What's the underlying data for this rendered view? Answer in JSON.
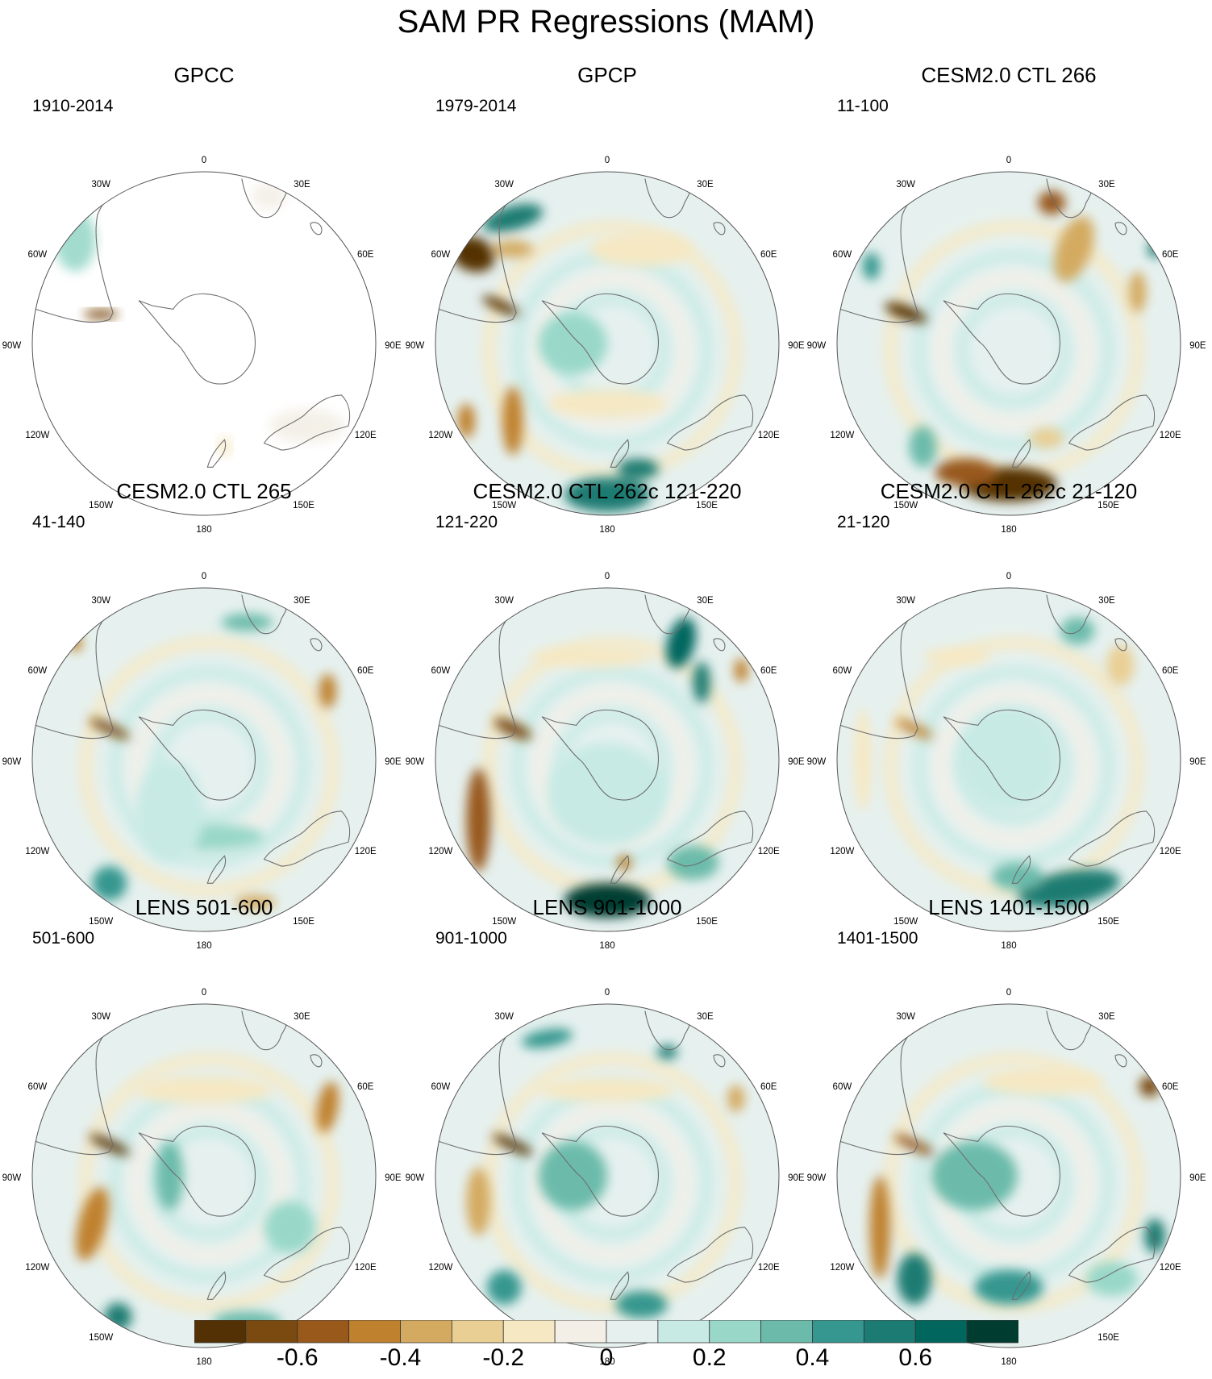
{
  "title": "SAM PR Regressions (MAM)",
  "axis_labels": [
    "0",
    "30E",
    "60E",
    "90E",
    "120E",
    "150E",
    "180",
    "150W",
    "120W",
    "90W",
    "60W",
    "30W"
  ],
  "panels": [
    {
      "title": "GPCC",
      "period": "1910-2014",
      "pattern": "gpcc"
    },
    {
      "title": "GPCP",
      "period": "1979-2014",
      "pattern": "gpcp"
    },
    {
      "title": "CESM2.0 CTL 266",
      "period": "11-100",
      "pattern": "ctl266"
    },
    {
      "title": "CESM2.0 CTL 265",
      "period": "41-140",
      "pattern": "ctl265"
    },
    {
      "title": "CESM2.0 CTL 262c 121-220",
      "period": "121-220",
      "pattern": "ctl262a"
    },
    {
      "title": "CESM2.0 CTL 262c 21-120",
      "period": "21-120",
      "pattern": "ctl262b"
    },
    {
      "title": "LENS 501-600",
      "period": "501-600",
      "pattern": "lens501"
    },
    {
      "title": "LENS 901-1000",
      "period": "901-1000",
      "pattern": "lens901"
    },
    {
      "title": "LENS 1401-1500",
      "period": "1401-1500",
      "pattern": "lens1401"
    }
  ],
  "colorbar": {
    "colors": [
      "#543005",
      "#7a4a10",
      "#98591a",
      "#bf812d",
      "#d4aa60",
      "#e9cf94",
      "#f6e8c3",
      "#f3efe6",
      "#e6f1ef",
      "#c7eae5",
      "#99d8c9",
      "#6cbbaa",
      "#35978f",
      "#1c7b72",
      "#01665e",
      "#003c30"
    ],
    "min": -0.8,
    "max": 0.8,
    "ticks": [
      "-0.6",
      "-0.4",
      "-0.2",
      "0",
      "0.2",
      "0.4",
      "0.6"
    ],
    "tick_values": [
      -0.6,
      -0.4,
      -0.2,
      0,
      0.2,
      0.4,
      0.6
    ]
  },
  "map_style": {
    "land_outline": "#6e6e6e",
    "circle_outline": "#555555",
    "missing_fill": "#ffffff"
  }
}
